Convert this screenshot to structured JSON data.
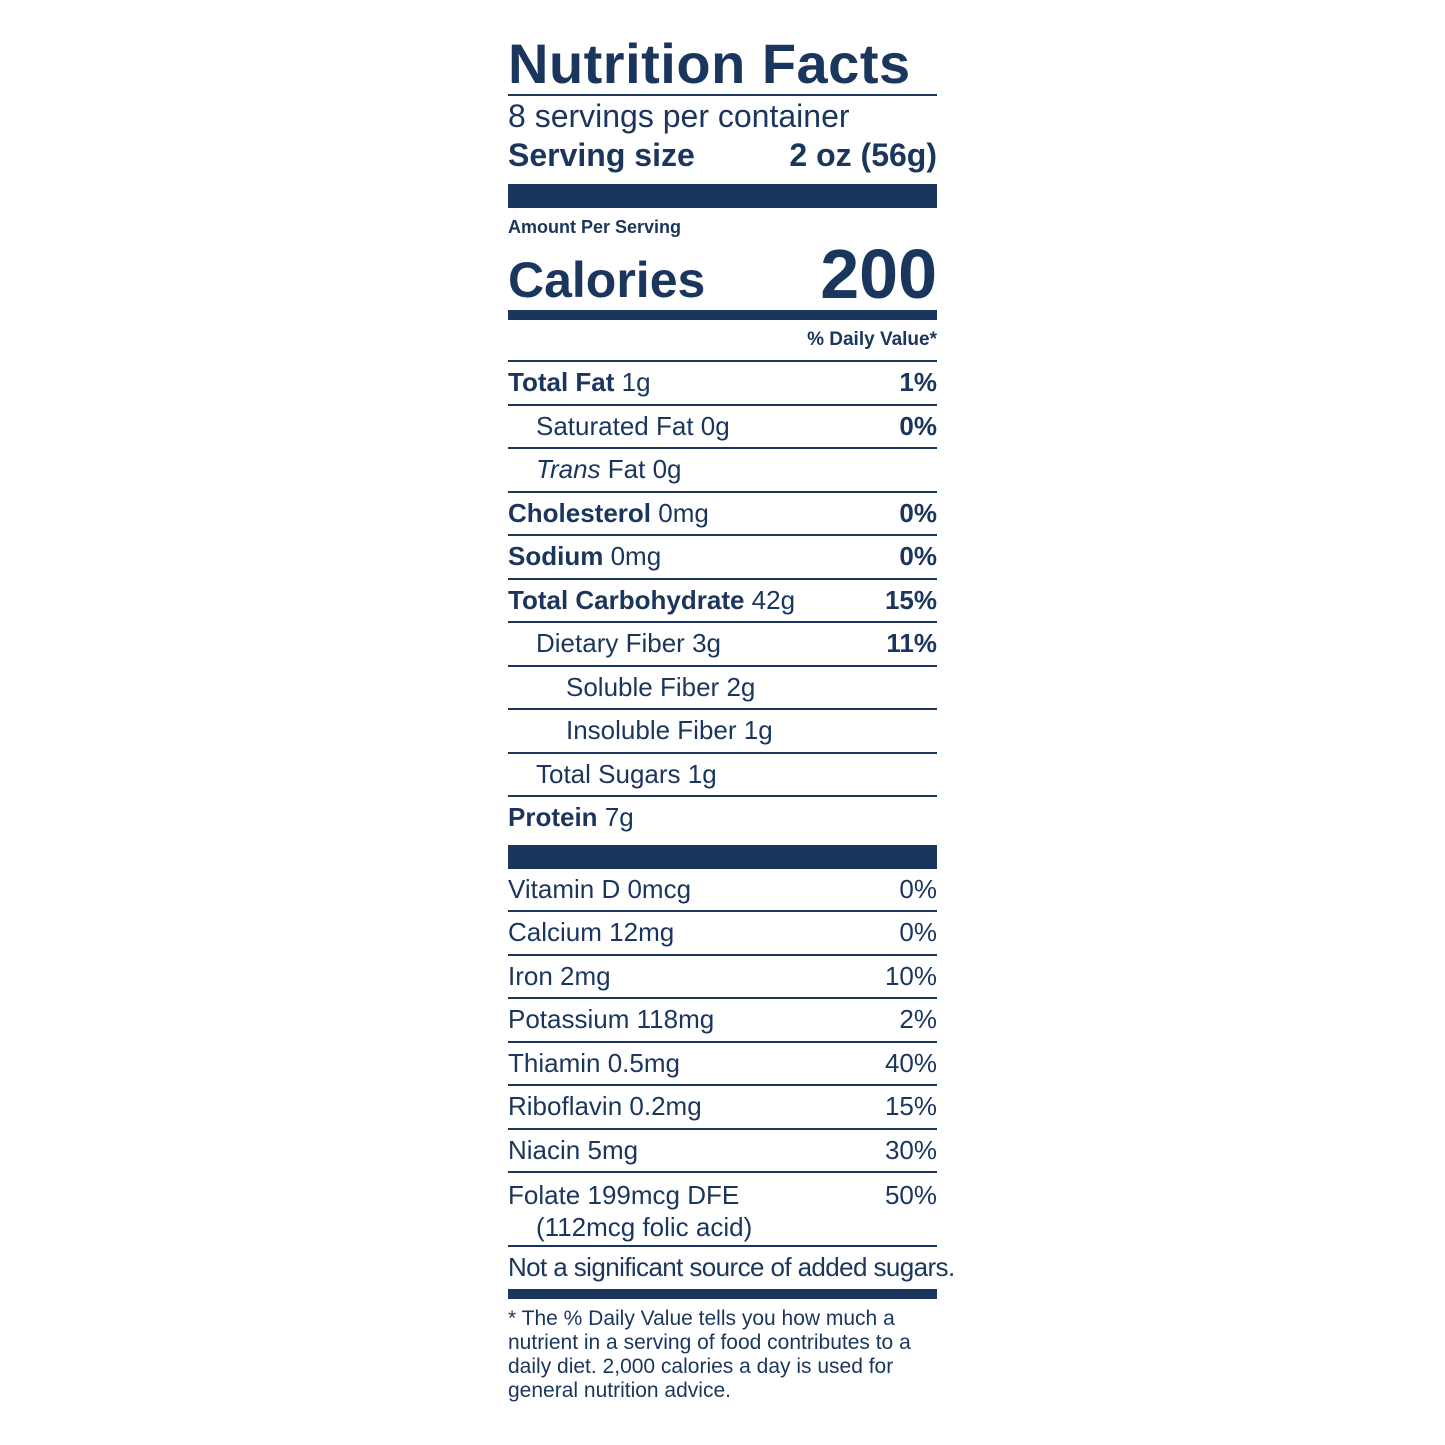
{
  "label": {
    "title": "Nutrition Facts",
    "servings_per_container": "8 servings per container",
    "serving_size_label": "Serving size",
    "serving_size_value": "2 oz (56g)",
    "amount_per_serving": "Amount Per Serving",
    "calories_label": "Calories",
    "calories_value": "200",
    "daily_value_header": "% Daily Value*",
    "nutrients": [
      {
        "name": "Total Fat",
        "amount": "1g",
        "dv": "1%"
      },
      {
        "name": "Saturated Fat",
        "amount": "0g",
        "dv": "0%"
      },
      {
        "name": "Trans",
        "suffix": "Fat",
        "amount": "0g",
        "dv": ""
      },
      {
        "name": "Cholesterol",
        "amount": "0mg",
        "dv": "0%"
      },
      {
        "name": "Sodium",
        "amount": "0mg",
        "dv": "0%"
      },
      {
        "name": "Total Carbohydrate",
        "amount": "42g",
        "dv": "15%"
      },
      {
        "name": "Dietary Fiber",
        "amount": "3g",
        "dv": "11%"
      },
      {
        "name": "Soluble Fiber",
        "amount": "2g",
        "dv": ""
      },
      {
        "name": "Insoluble Fiber",
        "amount": "1g",
        "dv": ""
      },
      {
        "name": "Total Sugars",
        "amount": "1g",
        "dv": ""
      },
      {
        "name": "Protein",
        "amount": "7g",
        "dv": ""
      }
    ],
    "vitamins": [
      {
        "name": "Vitamin D",
        "amount": "0mcg",
        "dv": "0%"
      },
      {
        "name": "Calcium",
        "amount": "12mg",
        "dv": "0%"
      },
      {
        "name": "Iron",
        "amount": "2mg",
        "dv": "10%"
      },
      {
        "name": "Potassium",
        "amount": "118mg",
        "dv": "2%"
      },
      {
        "name": "Thiamin",
        "amount": "0.5mg",
        "dv": "40%"
      },
      {
        "name": "Riboflavin",
        "amount": "0.2mg",
        "dv": "15%"
      },
      {
        "name": "Niacin",
        "amount": "5mg",
        "dv": "30%"
      },
      {
        "name": "Folate",
        "amount": "199mcg DFE",
        "sub": "(112mcg folic acid)",
        "dv": "50%"
      }
    ],
    "added_sugars_note": "Not a significant source of added sugars.",
    "footnote": "* The % Daily Value tells you how much a nutrient in a serving of food contributes to a daily diet. 2,000 calories a day is used for general nutrition advice.",
    "ink_color": "#1b365d"
  }
}
